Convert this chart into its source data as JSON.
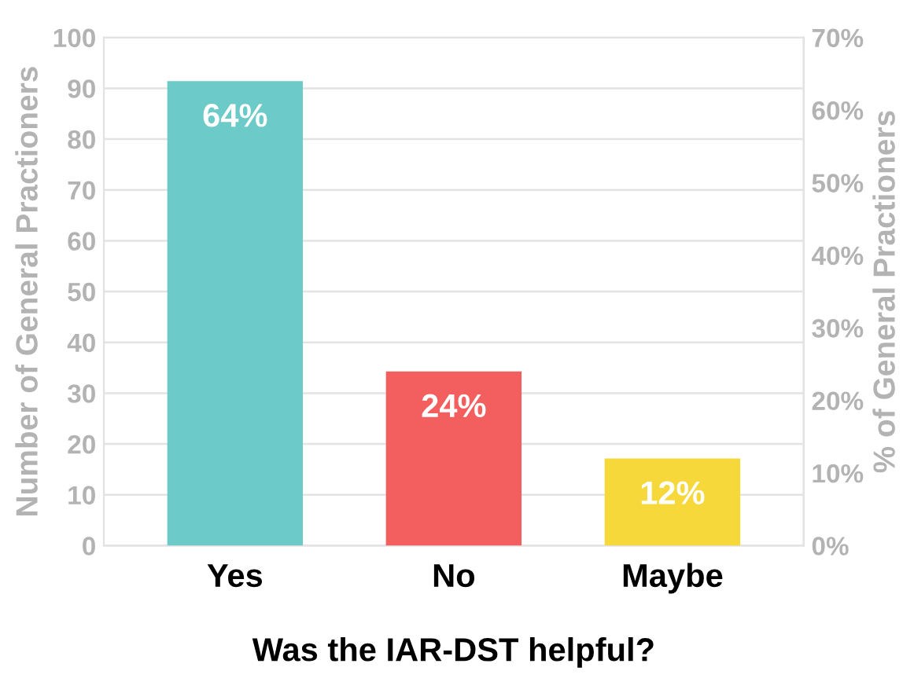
{
  "chart_data": {
    "type": "bar",
    "xlabel": "Was the IAR-DST helpful?",
    "ylabel": "Number of General Practioners",
    "y2label": "% of General Practioners",
    "categories": [
      "Yes",
      "No",
      "Maybe"
    ],
    "series": [
      {
        "values": [
          64,
          24,
          12
        ],
        "axis": "y2",
        "value_labels": [
          "64%",
          "24%",
          "12%"
        ]
      }
    ],
    "colors": [
      "#6ccbc8",
      "#f25f5e",
      "#f7d83b"
    ],
    "ylim": [
      0,
      100
    ],
    "yticks": [
      0,
      10,
      20,
      30,
      40,
      50,
      60,
      70,
      80,
      90,
      100
    ],
    "y2lim": [
      0,
      70
    ],
    "y2ticks": [
      {
        "value": 0,
        "label": "0%"
      },
      {
        "value": 10,
        "label": "10%"
      },
      {
        "value": 20,
        "label": "20%"
      },
      {
        "value": 30,
        "label": "30%"
      },
      {
        "value": 40,
        "label": "40%"
      },
      {
        "value": 50,
        "label": "50%"
      },
      {
        "value": 60,
        "label": "60%"
      },
      {
        "value": 70,
        "label": "70%"
      }
    ],
    "grid": "y",
    "legend": false
  }
}
